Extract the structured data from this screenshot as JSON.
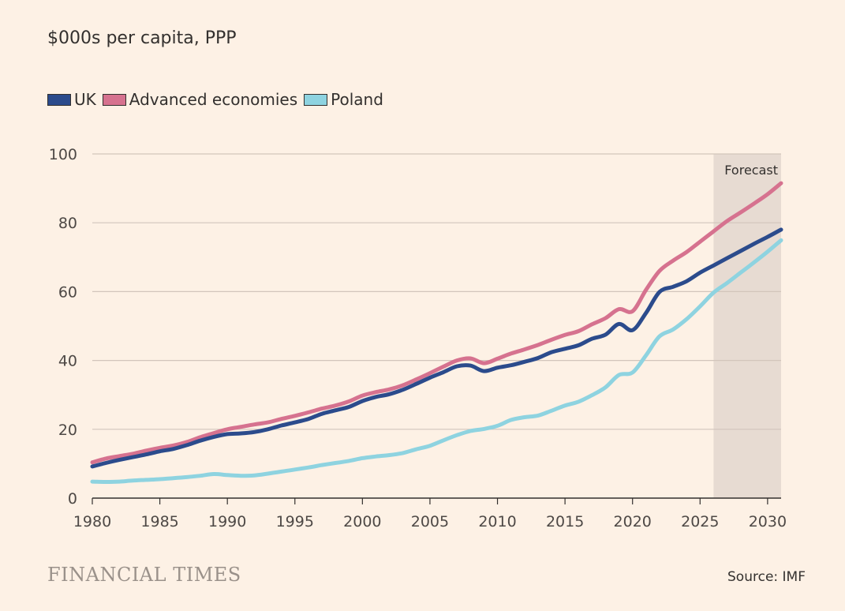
{
  "chart_data": {
    "type": "line",
    "subtitle": "$000s per capita, PPP",
    "ylim": [
      0,
      100
    ],
    "xlim": [
      1980,
      2031
    ],
    "yticks": [
      0,
      20,
      40,
      60,
      80,
      100
    ],
    "xticks": [
      1980,
      1985,
      1990,
      1995,
      2000,
      2005,
      2010,
      2015,
      2020,
      2025,
      2030
    ],
    "forecast": {
      "label": "Forecast",
      "start": 2026,
      "end": 2031
    },
    "x": [
      1980,
      1981,
      1982,
      1983,
      1984,
      1985,
      1986,
      1987,
      1988,
      1989,
      1990,
      1991,
      1992,
      1993,
      1994,
      1995,
      1996,
      1997,
      1998,
      1999,
      2000,
      2001,
      2002,
      2003,
      2004,
      2005,
      2006,
      2007,
      2008,
      2009,
      2010,
      2011,
      2012,
      2013,
      2014,
      2015,
      2016,
      2017,
      2018,
      2019,
      2020,
      2021,
      2022,
      2023,
      2024,
      2025,
      2026,
      2027,
      2028,
      2029,
      2030,
      2031
    ],
    "series": [
      {
        "name": "UK",
        "color": "#2b4b8c",
        "values": [
          9.2,
          10.2,
          11.1,
          11.9,
          12.7,
          13.6,
          14.3,
          15.4,
          16.7,
          17.8,
          18.6,
          18.8,
          19.2,
          20.0,
          21.1,
          22.0,
          23.0,
          24.5,
          25.5,
          26.5,
          28.2,
          29.4,
          30.2,
          31.5,
          33.2,
          35.0,
          36.6,
          38.3,
          38.5,
          36.9,
          37.9,
          38.6,
          39.6,
          40.7,
          42.4,
          43.4,
          44.4,
          46.3,
          47.5,
          50.6,
          48.8,
          53.8,
          59.9,
          61.4,
          63.0,
          65.5,
          67.6,
          69.7,
          71.8,
          73.9,
          75.9,
          78.0
        ]
      },
      {
        "name": "Advanced economies",
        "color": "#d6728f",
        "values": [
          10.4,
          11.5,
          12.2,
          12.9,
          13.8,
          14.6,
          15.3,
          16.3,
          17.7,
          18.9,
          20.0,
          20.7,
          21.4,
          22.0,
          23.0,
          23.9,
          24.9,
          26.0,
          26.9,
          28.1,
          29.8,
          30.8,
          31.6,
          32.8,
          34.5,
          36.3,
          38.2,
          40.0,
          40.6,
          39.2,
          40.5,
          42.0,
          43.2,
          44.5,
          46.0,
          47.4,
          48.5,
          50.5,
          52.3,
          54.9,
          54.3,
          60.5,
          66.0,
          69.0,
          71.5,
          74.5,
          77.5,
          80.5,
          83.0,
          85.6,
          88.3,
          91.5
        ]
      },
      {
        "name": "Poland",
        "color": "#8ed3e0",
        "values": [
          4.8,
          4.7,
          4.8,
          5.1,
          5.3,
          5.5,
          5.8,
          6.1,
          6.5,
          7.0,
          6.7,
          6.5,
          6.6,
          7.1,
          7.7,
          8.3,
          8.9,
          9.6,
          10.2,
          10.8,
          11.6,
          12.1,
          12.5,
          13.1,
          14.2,
          15.2,
          16.8,
          18.3,
          19.5,
          20.1,
          21.0,
          22.7,
          23.5,
          24.0,
          25.4,
          26.9,
          28.0,
          29.9,
          32.2,
          35.8,
          36.5,
          41.5,
          47.0,
          49.0,
          52.0,
          55.7,
          59.7,
          62.5,
          65.5,
          68.5,
          71.6,
          74.9
        ]
      }
    ]
  },
  "source": "Source: IMF",
  "publisher": "FINANCIAL TIMES"
}
